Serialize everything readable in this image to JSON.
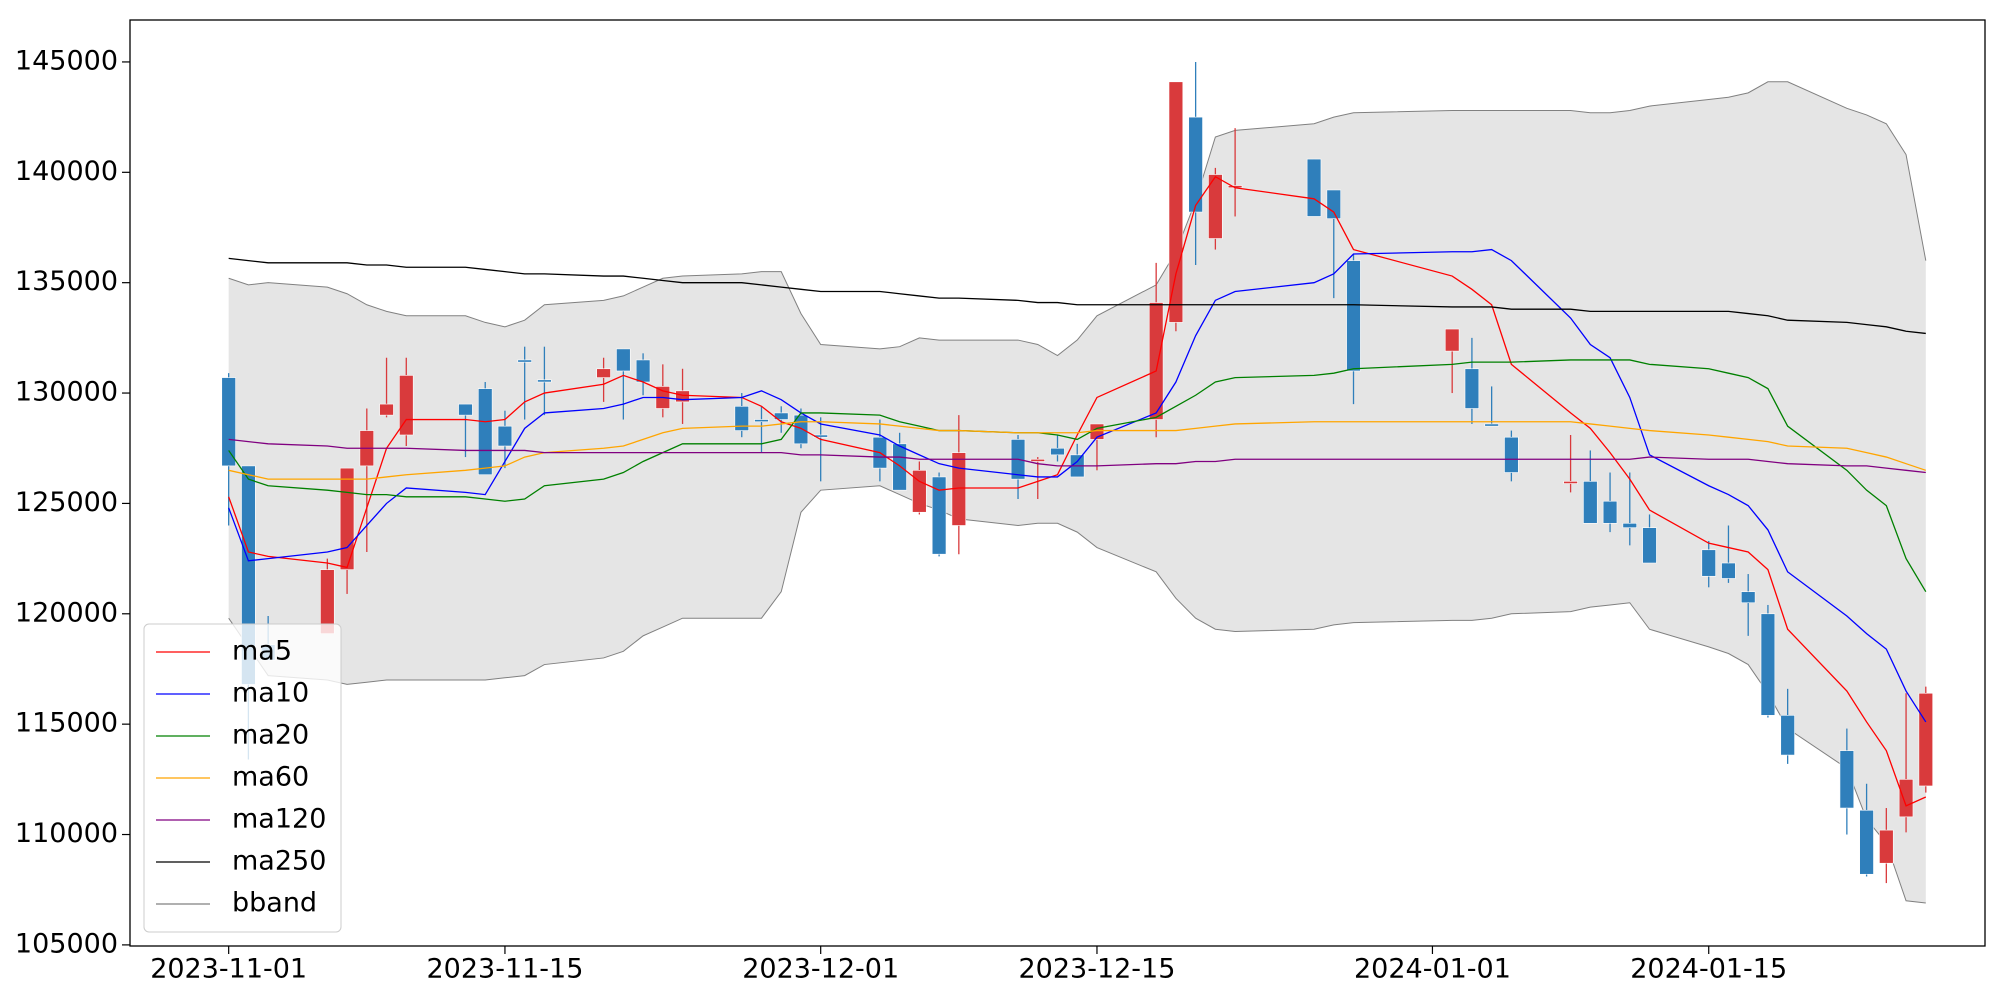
{
  "chart_data": {
    "type": "candlestick",
    "x": [
      "2023-11-01",
      "2023-11-02",
      "2023-11-03",
      "2023-11-06",
      "2023-11-07",
      "2023-11-08",
      "2023-11-09",
      "2023-11-10",
      "2023-11-13",
      "2023-11-14",
      "2023-11-15",
      "2023-11-16",
      "2023-11-17",
      "2023-11-20",
      "2023-11-21",
      "2023-11-22",
      "2023-11-23",
      "2023-11-24",
      "2023-11-27",
      "2023-11-28",
      "2023-11-29",
      "2023-11-30",
      "2023-12-01",
      "2023-12-04",
      "2023-12-05",
      "2023-12-06",
      "2023-12-07",
      "2023-12-08",
      "2023-12-11",
      "2023-12-12",
      "2023-12-13",
      "2023-12-14",
      "2023-12-15",
      "2023-12-18",
      "2023-12-19",
      "2023-12-20",
      "2023-12-21",
      "2023-12-22",
      "2023-12-26",
      "2023-12-27",
      "2023-12-28",
      "2024-01-02",
      "2024-01-03",
      "2024-01-04",
      "2024-01-05",
      "2024-01-08",
      "2024-01-09",
      "2024-01-10",
      "2024-01-11",
      "2024-01-12",
      "2024-01-15",
      "2024-01-16",
      "2024-01-17",
      "2024-01-18",
      "2024-01-19",
      "2024-01-22",
      "2024-01-23",
      "2024-01-24",
      "2024-01-25",
      "2024-01-26"
    ],
    "open": [
      130700,
      126700,
      118600,
      119100,
      122000,
      126700,
      129000,
      128100,
      129500,
      130200,
      128500,
      131500,
      130600,
      130700,
      132000,
      131500,
      129300,
      129600,
      129400,
      128800,
      129100,
      129000,
      128100,
      128000,
      127700,
      124600,
      126200,
      124000,
      127900,
      126900,
      127500,
      127200,
      127900,
      128800,
      133200,
      142500,
      137000,
      139300,
      140600,
      139200,
      136000,
      131900,
      131100,
      128600,
      128000,
      125900,
      126000,
      125100,
      124100,
      123900,
      122900,
      122300,
      121000,
      120000,
      115400,
      113800,
      111100,
      108700,
      110800,
      112200
    ],
    "high": [
      130900,
      126700,
      119900,
      122500,
      126600,
      129300,
      131600,
      131600,
      129500,
      130500,
      129200,
      132100,
      132100,
      131600,
      132000,
      131800,
      131300,
      131100,
      130000,
      129400,
      129400,
      129300,
      128900,
      128800,
      128200,
      126900,
      126400,
      129000,
      128100,
      127100,
      128100,
      127700,
      128600,
      135900,
      144100,
      145000,
      140200,
      142000,
      140600,
      139200,
      136300,
      132900,
      132500,
      130300,
      128300,
      128100,
      127400,
      126400,
      126400,
      124500,
      123300,
      124000,
      121800,
      120400,
      116600,
      114800,
      112300,
      111200,
      116400,
      116700
    ],
    "low": [
      124000,
      113400,
      117900,
      119100,
      120900,
      122800,
      128900,
      127600,
      127100,
      126300,
      126600,
      128800,
      129000,
      129600,
      128800,
      129900,
      128900,
      128600,
      128000,
      127300,
      128200,
      127500,
      126000,
      126000,
      125600,
      124500,
      122600,
      122700,
      125200,
      125200,
      126900,
      126200,
      126500,
      128000,
      132800,
      135800,
      136500,
      138000,
      138000,
      134300,
      129500,
      130000,
      128600,
      128500,
      126000,
      125500,
      124100,
      123700,
      123100,
      122300,
      121200,
      121400,
      119000,
      115300,
      113200,
      110000,
      108100,
      107800,
      110100,
      111900
    ],
    "close": [
      126700,
      116800,
      117900,
      122000,
      126600,
      128300,
      129500,
      130800,
      129000,
      126300,
      127600,
      131400,
      130500,
      131100,
      131000,
      130500,
      130300,
      130100,
      128300,
      128700,
      128800,
      127700,
      128000,
      126600,
      125600,
      126500,
      122700,
      127300,
      126100,
      127000,
      127200,
      126200,
      128600,
      134100,
      144100,
      138200,
      139900,
      139400,
      138000,
      137900,
      131000,
      132900,
      129300,
      128500,
      126400,
      126000,
      124100,
      124100,
      123900,
      122300,
      121700,
      121600,
      120500,
      115400,
      113600,
      111200,
      108200,
      110200,
      112500,
      116400
    ],
    "up_color": "#d93a3c",
    "down_color": "#2f7fbb",
    "lines": [
      {
        "name": "ma5",
        "color": "#ff0000",
        "values": [
          125300,
          122800,
          122600,
          122300,
          122100,
          124800,
          127500,
          128800,
          128800,
          128700,
          128800,
          129600,
          130000,
          130400,
          130800,
          130500,
          130100,
          129900,
          129800,
          129400,
          128700,
          128400,
          127900,
          127300,
          126700,
          126000,
          125600,
          125700,
          125700,
          126000,
          126300,
          128100,
          129800,
          131000,
          135400,
          138500,
          139800,
          139300,
          138800,
          138200,
          136500,
          135300,
          134700,
          134000,
          131300,
          129100,
          128400,
          127300,
          126100,
          124700,
          123200,
          123000,
          122800,
          122000,
          119300,
          116500,
          115100,
          113800,
          111300,
          111700
        ]
      },
      {
        "name": "ma10",
        "color": "#0000ff",
        "values": [
          124800,
          122400,
          122500,
          122800,
          123000,
          124000,
          125000,
          125700,
          125500,
          125400,
          126900,
          128400,
          129100,
          129300,
          129500,
          129800,
          129800,
          129700,
          129800,
          130100,
          129700,
          129100,
          128600,
          128100,
          127600,
          127200,
          126800,
          126600,
          126300,
          126200,
          126200,
          126900,
          128000,
          129100,
          130500,
          132600,
          134200,
          134600,
          135000,
          135400,
          136300,
          136400,
          136400,
          136500,
          136000,
          133400,
          132200,
          131600,
          129800,
          127200,
          125800,
          125400,
          124900,
          123800,
          121900,
          119900,
          119100,
          118400,
          116500,
          115100
        ]
      },
      {
        "name": "ma20",
        "color": "#008000",
        "values": [
          127400,
          126100,
          125800,
          125600,
          125500,
          125400,
          125400,
          125300,
          125300,
          125200,
          125100,
          125200,
          125800,
          126100,
          126400,
          126900,
          127300,
          127700,
          127700,
          127700,
          127900,
          129100,
          129100,
          129000,
          128700,
          128500,
          128300,
          128300,
          128200,
          128200,
          128100,
          127900,
          128400,
          128900,
          129400,
          129900,
          130500,
          130700,
          130800,
          130900,
          131100,
          131300,
          131400,
          131400,
          131400,
          131500,
          131500,
          131500,
          131500,
          131300,
          131100,
          130900,
          130700,
          130200,
          128500,
          126500,
          125600,
          124900,
          122500,
          121000
        ]
      },
      {
        "name": "ma60",
        "color": "#ffa500",
        "values": [
          126500,
          126300,
          126100,
          126100,
          126100,
          126100,
          126200,
          126300,
          126500,
          126600,
          126700,
          127100,
          127300,
          127500,
          127600,
          127900,
          128200,
          128400,
          128500,
          128500,
          128600,
          128700,
          128700,
          128600,
          128500,
          128400,
          128300,
          128300,
          128200,
          128200,
          128200,
          128200,
          128300,
          128300,
          128300,
          128400,
          128500,
          128600,
          128700,
          128700,
          128700,
          128700,
          128700,
          128700,
          128700,
          128700,
          128600,
          128500,
          128400,
          128300,
          128100,
          128000,
          127900,
          127800,
          127600,
          127500,
          127300,
          127100,
          126800,
          126500
        ]
      },
      {
        "name": "ma120",
        "color": "#800080",
        "values": [
          127900,
          127800,
          127700,
          127600,
          127500,
          127500,
          127500,
          127500,
          127400,
          127400,
          127400,
          127400,
          127300,
          127300,
          127300,
          127300,
          127300,
          127300,
          127300,
          127300,
          127300,
          127200,
          127200,
          127100,
          127100,
          127000,
          127000,
          127000,
          127000,
          126800,
          126700,
          126700,
          126700,
          126800,
          126800,
          126900,
          126900,
          127000,
          127000,
          127000,
          127000,
          127000,
          127000,
          127000,
          127000,
          127000,
          127000,
          127000,
          127000,
          127100,
          127000,
          127000,
          127000,
          126900,
          126800,
          126700,
          126700,
          126600,
          126500,
          126400
        ]
      },
      {
        "name": "ma250",
        "color": "#000000",
        "values": [
          136100,
          136000,
          135900,
          135900,
          135900,
          135800,
          135800,
          135700,
          135700,
          135600,
          135500,
          135400,
          135400,
          135300,
          135300,
          135200,
          135100,
          135000,
          135000,
          134900,
          134800,
          134700,
          134600,
          134600,
          134500,
          134400,
          134300,
          134300,
          134200,
          134100,
          134100,
          134000,
          134000,
          134000,
          134000,
          134000,
          134000,
          134000,
          134000,
          134000,
          134000,
          133900,
          133900,
          133900,
          133800,
          133800,
          133700,
          133700,
          133700,
          133700,
          133700,
          133700,
          133600,
          133500,
          133300,
          133200,
          133100,
          133000,
          132800,
          132700
        ]
      }
    ],
    "band": {
      "name": "bband",
      "color": "#808080",
      "fill": "#e5e5e5",
      "upper": [
        135200,
        134900,
        135000,
        134800,
        134500,
        134000,
        133700,
        133500,
        133500,
        133200,
        133000,
        133300,
        134000,
        134200,
        134400,
        134800,
        135200,
        135300,
        135400,
        135500,
        135500,
        133600,
        132200,
        132000,
        132100,
        132500,
        132400,
        132400,
        132400,
        132200,
        131700,
        132400,
        133500,
        134900,
        136400,
        138700,
        141600,
        141900,
        142200,
        142500,
        142700,
        142800,
        142800,
        142800,
        142800,
        142800,
        142700,
        142700,
        142800,
        143000,
        143300,
        143400,
        143600,
        144100,
        144100,
        142900,
        142600,
        142200,
        140800,
        136000
      ],
      "lower": [
        119800,
        118500,
        117200,
        117000,
        116800,
        116900,
        117000,
        117000,
        117000,
        117000,
        117100,
        117200,
        117700,
        118000,
        118300,
        119000,
        119400,
        119800,
        119800,
        119800,
        121000,
        124600,
        125600,
        125800,
        125400,
        125000,
        124700,
        124300,
        124000,
        124100,
        124100,
        123700,
        123000,
        121900,
        120700,
        119800,
        119300,
        119200,
        119300,
        119500,
        119600,
        119700,
        119700,
        119800,
        120000,
        120100,
        120300,
        120400,
        120500,
        119300,
        118500,
        118200,
        117700,
        116400,
        114800,
        113000,
        110700,
        109600,
        107000,
        106900
      ]
    },
    "xlim": [
      "2023-10-27",
      "2024-01-29"
    ],
    "xticks": [
      "2023-11-01",
      "2023-11-15",
      "2023-12-01",
      "2023-12-15",
      "2024-01-01",
      "2024-01-15"
    ],
    "ylim": [
      104950,
      146900
    ],
    "yticks": [
      105000,
      110000,
      115000,
      120000,
      125000,
      130000,
      135000,
      140000,
      145000
    ],
    "legend": "lower left"
  }
}
